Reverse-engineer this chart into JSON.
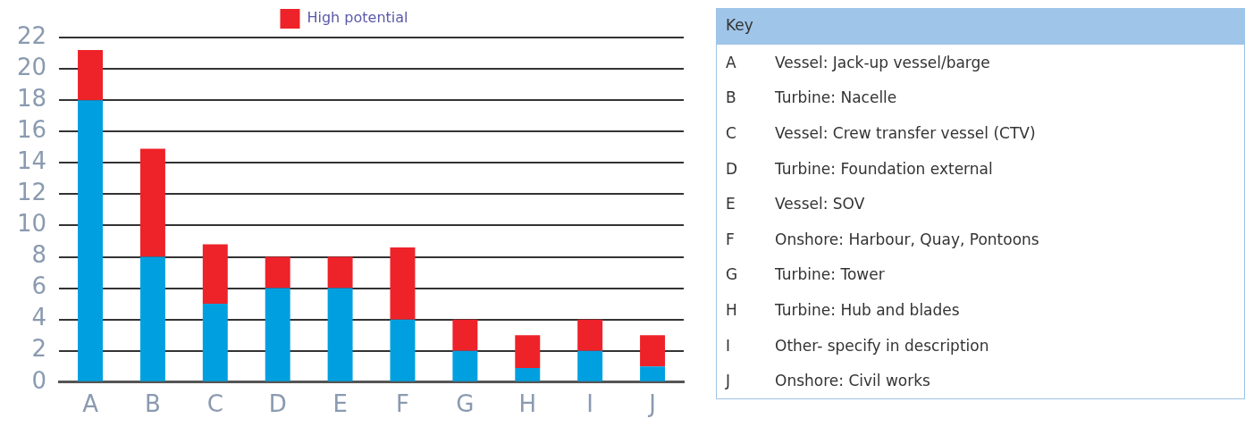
{
  "chart_data": [
    {
      "type": "bar",
      "stacked": true,
      "categories": [
        "A",
        "B",
        "C",
        "D",
        "E",
        "F",
        "G",
        "H",
        "I",
        "J"
      ],
      "series": [
        {
          "color": "#00a0e0",
          "values": [
            18,
            8,
            5,
            6,
            6,
            4,
            2,
            0.9,
            2,
            1
          ]
        },
        {
          "name": "High potential",
          "color": "#ee2229",
          "values": [
            3.2,
            6.9,
            3.8,
            2,
            2,
            4.6,
            2,
            2.1,
            2,
            2
          ]
        }
      ],
      "ylim": [
        0,
        22
      ],
      "yticks": [
        0,
        2,
        4,
        6,
        8,
        10,
        12,
        14,
        16,
        18,
        20,
        22
      ],
      "grid": "y",
      "legend": "top"
    },
    {
      "type": "other",
      "title": "Key",
      "categories": [
        "A",
        "B",
        "C",
        "D",
        "E",
        "F",
        "G",
        "H",
        "I",
        "J"
      ],
      "annotations": [
        "Vessel: Jack-up vessel/barge",
        "Turbine: Nacelle",
        "Vessel: Crew transfer vessel (CTV)",
        "Turbine: Foundation external",
        "Vessel: SOV",
        "Onshore: Harbour, Quay, Pontoons",
        "Turbine: Tower",
        "Turbine: Hub and blades",
        "Other- specify in description",
        "Onshore: Civil works"
      ]
    }
  ]
}
